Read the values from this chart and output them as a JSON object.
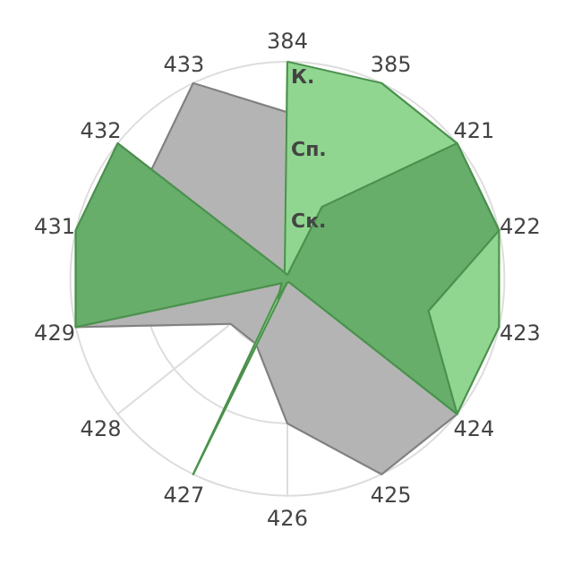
{
  "chart_data": {
    "type": "radar",
    "categories": [
      "384",
      "385",
      "421",
      "422",
      "423",
      "424",
      "425",
      "426",
      "427",
      "428",
      "429",
      "431",
      "432",
      "433"
    ],
    "ylim": [
      0,
      3
    ],
    "yticks": [
      {
        "value": 1,
        "label": "Ск."
      },
      {
        "value": 2,
        "label": "Сп."
      },
      {
        "value": 3,
        "label": "К."
      }
    ],
    "grid": true,
    "series": [
      {
        "color": "#b4b4b4",
        "values": [
          2.3,
          null,
          null,
          null,
          null,
          3,
          3,
          2,
          1,
          1,
          3,
          null,
          null,
          3
        ]
      },
      {
        "color": "#90d690",
        "values": [
          3,
          3,
          3,
          3,
          3,
          3,
          0.05,
          0.05,
          3,
          0.05,
          null,
          null,
          null,
          null
        ]
      },
      {
        "color": "#67ae6a",
        "values": [
          0.05,
          1.1,
          3,
          3,
          2,
          3,
          0.05,
          0.05,
          0.3,
          0.1,
          3,
          3,
          3,
          0.1
        ]
      }
    ]
  }
}
